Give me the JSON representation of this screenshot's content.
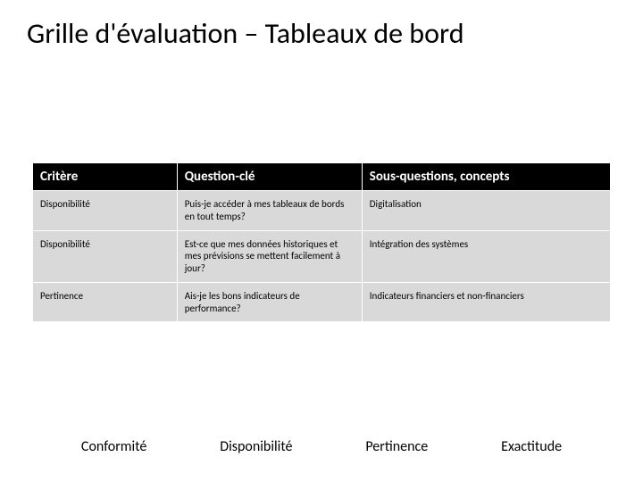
{
  "title": "Grille d'évaluation – Tableaux de bord",
  "table": {
    "type": "table",
    "header_bg": "#000000",
    "header_fg": "#ffffff",
    "body_bg": "#d9d9d9",
    "body_fg": "#000000",
    "border_color": "#ffffff",
    "header_fontsize": 15,
    "body_fontsize": 11,
    "col_widths_pct": [
      25,
      32,
      43
    ],
    "columns": [
      "Critère",
      "Question-clé",
      "Sous-questions, concepts"
    ],
    "rows": [
      [
        "Disponibilité",
        "Puis-je accéder à mes tableaux de bords en tout temps?",
        "Digitalisation"
      ],
      [
        "Disponibilité",
        "Est-ce que mes données historiques et mes prévisions se mettent facilement à jour?",
        "Intégration des systèmes"
      ],
      [
        "Pertinence",
        "Ais-je les bons indicateurs de performance?",
        "Indicateurs financiers et non-financiers"
      ]
    ]
  },
  "footer": {
    "items": [
      "Conformité",
      "Disponibilité",
      "Pertinence",
      "Exactitude"
    ],
    "fontsize": 16,
    "color": "#000000"
  },
  "colors": {
    "background": "#ffffff",
    "title": "#000000"
  },
  "typography": {
    "title_fontsize": 32,
    "font_family": "Calibri"
  }
}
